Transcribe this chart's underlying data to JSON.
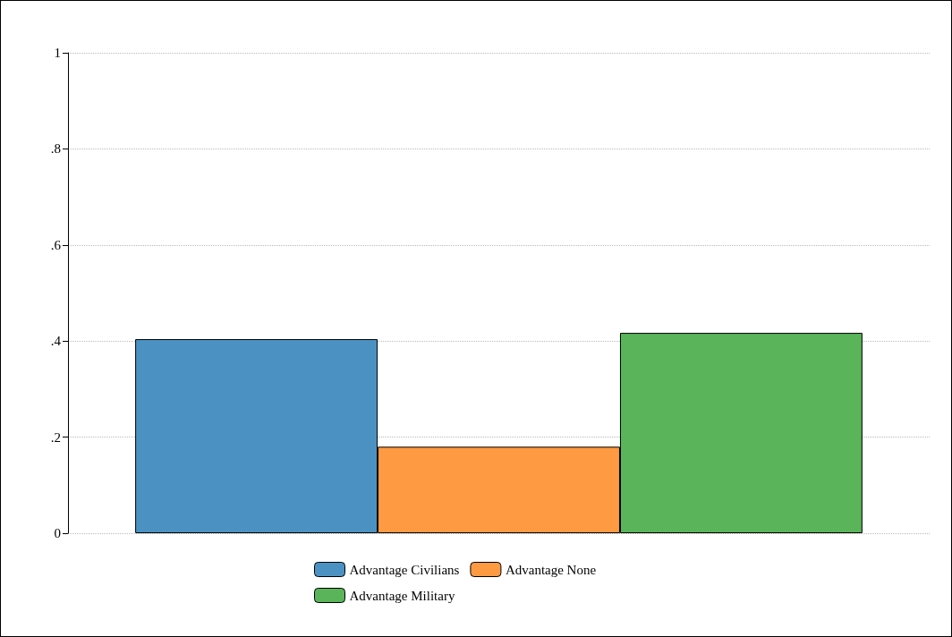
{
  "chart_data": {
    "type": "bar",
    "categories": [
      null
    ],
    "series": [
      {
        "name": "Advantage Civilians",
        "color": "#4b92c3",
        "values": [
          0.404
        ]
      },
      {
        "name": "Advantage None",
        "color": "#fe9a42",
        "values": [
          0.18
        ]
      },
      {
        "name": "Advantage Military",
        "color": "#5ab45a",
        "values": [
          0.417
        ]
      }
    ],
    "ylim": [
      0,
      1
    ],
    "yticks": [
      0,
      {
        "value": 0.2,
        "label": ".2"
      },
      {
        "value": 0.4,
        "label": ".4"
      },
      {
        "value": 0.6,
        "label": ".6"
      },
      {
        "value": 0.8,
        "label": ".8"
      },
      1
    ],
    "grid": "y",
    "legend": "bottom",
    "tick_labels": "y"
  }
}
